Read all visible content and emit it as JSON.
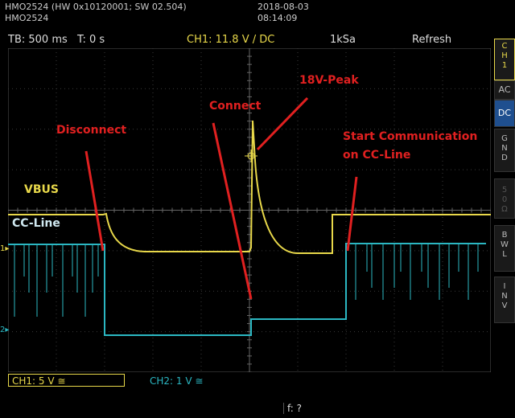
{
  "header": {
    "device_line1": "HMO2524 (HW 0x10120001; SW 02.504)",
    "device_line2": "HMO2524",
    "date": "2018-08-03",
    "time": "08:14:09"
  },
  "status": {
    "timebase": "TB: 500 ms",
    "trigger_time": "T: 0 s",
    "trigger": "CH1: 11.8 V / DC",
    "sample_rate": "1kSa",
    "mode": "Refresh"
  },
  "sidebar": {
    "channel": [
      "C",
      "H",
      "1"
    ],
    "buttons": [
      {
        "label": "AC",
        "active": false
      },
      {
        "label": "DC",
        "active": true
      },
      {
        "label": "GND",
        "active": false
      },
      {
        "label": "50Ω",
        "active": false
      },
      {
        "label": "BWL",
        "active": false
      },
      {
        "label": "INV",
        "active": false
      }
    ]
  },
  "bottom": {
    "ch1": "CH1: 5 V ≅",
    "ch2": "CH2: 1 V ≅",
    "freq": "f: ?"
  },
  "annotations": {
    "disconnect": "Disconnect",
    "connect": "Connect",
    "peak": "18V-Peak",
    "start_comm_1": "Start Communication",
    "start_comm_2": "on CC-Line",
    "vbus": "VBUS",
    "cc_line": "CC-Line"
  },
  "markers": {
    "ch1": "1",
    "ch2": "2"
  },
  "colors": {
    "ch1": "#e8d84a",
    "ch2": "#2bb7c2",
    "annotation": "#e02020"
  }
}
